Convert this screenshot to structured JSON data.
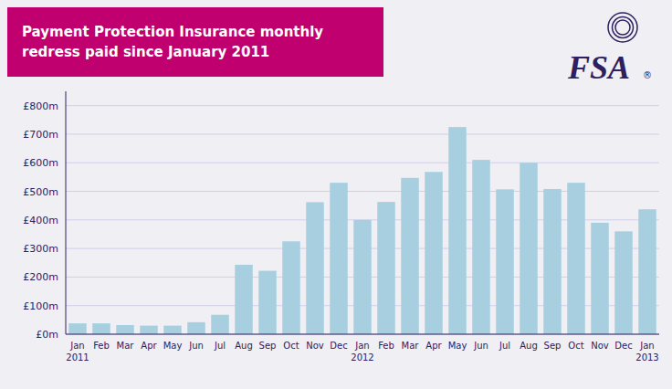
{
  "chart_data": {
    "type": "bar",
    "title": "Payment Protection Insurance monthly\nredress paid since January 2011",
    "annotations": [
      "FSA",
      "®"
    ],
    "categories": [
      "Jan\n2011",
      "Feb",
      "Mar",
      "Apr",
      "May",
      "Jun",
      "Jul",
      "Aug",
      "Sep",
      "Oct",
      "Nov",
      "Dec",
      "Jan\n2012",
      "Feb",
      "Mar",
      "Apr",
      "May",
      "Jun",
      "Jul",
      "Aug",
      "Sep",
      "Oct",
      "Nov",
      "Dec",
      "Jan\n2013"
    ],
    "values": [
      38,
      38,
      32,
      30,
      30,
      42,
      68,
      243,
      222,
      325,
      462,
      530,
      400,
      463,
      547,
      568,
      725,
      610,
      507,
      600,
      508,
      530,
      390,
      360,
      437
    ],
    "color": "#a8cfe0",
    "ylim": [
      0,
      850
    ],
    "yticks": [
      {
        "value": 0,
        "label": "£0m"
      },
      {
        "value": 100,
        "label": "£100m"
      },
      {
        "value": 200,
        "label": "£200m"
      },
      {
        "value": 300,
        "label": "£300m"
      },
      {
        "value": 400,
        "label": "£400m"
      },
      {
        "value": 500,
        "label": "£500m"
      },
      {
        "value": 600,
        "label": "£600m"
      },
      {
        "value": 700,
        "label": "£700m"
      },
      {
        "value": 800,
        "label": "£800m"
      }
    ],
    "grid": true
  }
}
